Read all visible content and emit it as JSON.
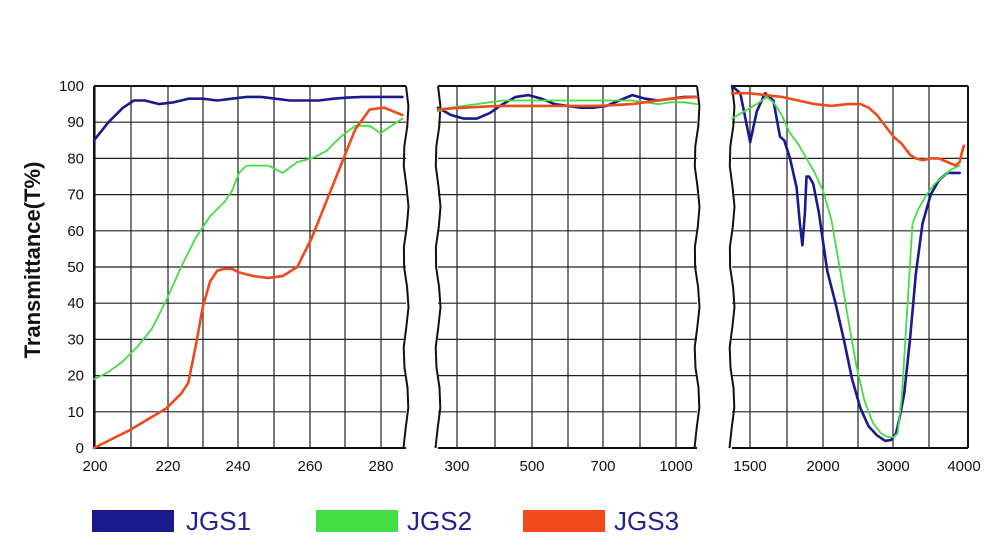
{
  "chart_data": {
    "type": "line",
    "ylabel": "Transmittance(T%)",
    "ylim": [
      0,
      100
    ],
    "y_ticks": [
      0,
      10,
      20,
      30,
      40,
      50,
      60,
      70,
      80,
      90,
      100
    ],
    "grid": true,
    "legend_position": "bottom",
    "colors": {
      "JGS1": "#1a1a8c",
      "JGS2": "#44dd44",
      "JGS3": "#f04a1a"
    },
    "panels": [
      {
        "x_ticks": [
          "200",
          "220",
          "240",
          "260",
          "280"
        ],
        "series": [
          {
            "name": "JGS1",
            "x": [
              200,
              204,
              208,
              211,
              214,
              218,
              222,
              226,
              230,
              234,
              238,
              242,
              246,
              250,
              254,
              258,
              262,
              266,
              270,
              274,
              278,
              282,
              285
            ],
            "y": [
              85,
              90,
              94,
              96,
              96,
              95,
              95.5,
              96.5,
              96.5,
              96,
              96.5,
              97,
              97,
              96.5,
              96,
              96,
              96,
              96.5,
              96.8,
              97,
              97,
              97,
              97
            ]
          },
          {
            "name": "JGS2",
            "x": [
              200,
              204,
              208,
              212,
              216,
              220,
              224,
              228,
              232,
              236,
              238,
              240,
              242,
              244,
              248,
              252,
              256,
              260,
              264,
              268,
              272,
              276,
              279,
              282,
              285
            ],
            "y": [
              19,
              21,
              24,
              28,
              33,
              41,
              50,
              58,
              64,
              68,
              71,
              76,
              78,
              78,
              78,
              76,
              79,
              80,
              82,
              86,
              89,
              89,
              87,
              89,
              91
            ]
          },
          {
            "name": "JGS3",
            "x": [
              200,
              205,
              210,
              215,
              220,
              224,
              226,
              228,
              230,
              232,
              234,
              236,
              238,
              240,
              244,
              248,
              252,
              256,
              260,
              264,
              268,
              272,
              276,
              280,
              285
            ],
            "y": [
              0,
              2.5,
              5,
              8,
              11,
              15,
              18,
              28,
              39,
              46,
              49,
              49.5,
              49.5,
              48.5,
              47.5,
              47,
              47.5,
              50,
              58,
              68,
              78,
              88,
              93.5,
              94,
              92
            ]
          }
        ]
      },
      {
        "x_ticks": [
          "300",
          "500",
          "700",
          "1000"
        ],
        "series": [
          {
            "name": "JGS1",
            "x": [
              0,
              0.5,
              1,
              1.5,
              2,
              2.5,
              3,
              3.5,
              4,
              4.5,
              5,
              5.5,
              6,
              6.5,
              7,
              7.5,
              8,
              8.5,
              9,
              9.5,
              10
            ],
            "y": [
              94,
              92,
              91,
              91,
              92.5,
              95,
              97,
              97.5,
              96.5,
              95,
              94.5,
              94,
              94,
              94.5,
              96,
              97.5,
              96.5,
              96,
              96.5,
              97,
              97
            ]
          },
          {
            "name": "JGS2",
            "x": [
              0,
              0.5,
              1,
              1.5,
              2,
              2.5,
              3,
              3.5,
              4,
              4.5,
              5,
              5.5,
              6,
              6.5,
              7,
              7.5,
              8,
              8.5,
              9,
              9.5,
              10
            ],
            "y": [
              93,
              94,
              94.5,
              95,
              95.5,
              96,
              96,
              96,
              96,
              96,
              96,
              96,
              96,
              96,
              96,
              96,
              95.5,
              95,
              95.5,
              95.5,
              95
            ]
          },
          {
            "name": "JGS3",
            "x": [
              0,
              0.5,
              1,
              1.5,
              2,
              2.5,
              3,
              3.5,
              4,
              4.5,
              5,
              5.5,
              6,
              6.5,
              7,
              7.5,
              8,
              8.5,
              9,
              9.5,
              10
            ],
            "y": [
              93.5,
              93.8,
              94,
              94.2,
              94.4,
              94.5,
              94.5,
              94.5,
              94.5,
              94.5,
              94.5,
              94.5,
              94.5,
              94.6,
              94.8,
              95,
              95.5,
              96,
              96.5,
              96.8,
              97
            ]
          }
        ]
      },
      {
        "x_ticks": [
          "1500",
          "2000",
          "3000",
          "4000"
        ],
        "series": [
          {
            "name": "JGS1",
            "x": [
              1.0,
              1.1,
              1.22,
              1.3,
              1.4,
              1.5,
              1.58,
              1.63,
              1.7,
              1.78,
              1.82,
              1.85,
              1.88,
              1.9,
              1.93,
              1.98,
              2.05,
              2.15,
              2.25,
              2.35,
              2.45,
              2.55,
              2.65,
              2.75,
              2.85,
              2.92,
              2.98,
              3.02,
              3.08,
              3.15,
              3.22,
              3.3,
              3.4,
              3.5,
              3.6,
              3.7,
              3.75
            ],
            "y": [
              100,
              98,
              84.5,
              93,
              98,
              96,
              86,
              85,
              80,
              72,
              62,
              56,
              65,
              75,
              75,
              73,
              65,
              49,
              40,
              30,
              19,
              11,
              6,
              3.5,
              2,
              2.2,
              4,
              8,
              15,
              30,
              48,
              62,
              70,
              74,
              76,
              76,
              76
            ]
          },
          {
            "name": "JGS2",
            "x": [
              1.0,
              1.15,
              1.3,
              1.42,
              1.5,
              1.6,
              1.7,
              1.8,
              1.9,
              2.0,
              2.1,
              2.2,
              2.3,
              2.4,
              2.5,
              2.6,
              2.7,
              2.8,
              2.88,
              2.95,
              3.0,
              3.05,
              3.12,
              3.18,
              3.25,
              3.35,
              3.45,
              3.55,
              3.65,
              3.75
            ],
            "y": [
              91,
              93,
              95,
              97,
              95.5,
              92,
              87,
              84,
              80,
              76,
              71,
              63,
              50,
              36,
              23,
              13,
              7,
              4,
              3,
              3,
              4,
              14,
              40,
              62,
              66,
              70,
              73,
              75,
              77,
              78
            ]
          },
          {
            "name": "JGS3",
            "x": [
              1.0,
              1.2,
              1.4,
              1.6,
              1.8,
              2.0,
              2.2,
              2.4,
              2.55,
              2.65,
              2.75,
              2.85,
              2.95,
              3.05,
              3.15,
              3.22,
              3.3,
              3.4,
              3.5,
              3.6,
              3.7,
              3.75,
              3.78,
              3.8
            ],
            "y": [
              98,
              98,
              97.5,
              97,
              96,
              95,
              94.5,
              95,
              95,
              94,
              92,
              89,
              86,
              84,
              81,
              80,
              79.5,
              80,
              80,
              79,
              78,
              79,
              82,
              83.5
            ]
          }
        ]
      }
    ]
  },
  "legend": [
    {
      "label": "JGS1",
      "color": "#1a1a8c"
    },
    {
      "label": "JGS2",
      "color": "#44dd44"
    },
    {
      "label": "JGS3",
      "color": "#f04a1a"
    }
  ]
}
